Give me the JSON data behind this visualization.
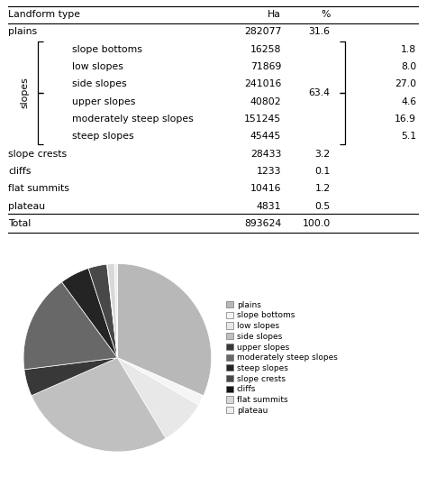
{
  "pie_labels": [
    "plains",
    "slope bottoms",
    "low slopes",
    "side slopes",
    "upper slopes",
    "moderately steep slopes",
    "steep slopes",
    "slope crests",
    "cliffs",
    "flat summits",
    "plateau"
  ],
  "pie_values": [
    31.6,
    1.8,
    8.0,
    27.0,
    4.6,
    16.9,
    5.1,
    3.2,
    0.1,
    1.2,
    0.5
  ],
  "pie_colors": [
    "#b8b8b8",
    "#f5f5f5",
    "#e8e8e8",
    "#c0c0c0",
    "#383838",
    "#686868",
    "#242424",
    "#484848",
    "#141414",
    "#d8d8d8",
    "#eeeeee"
  ],
  "table_data": [
    {
      "label": "plains",
      "indent": false,
      "ha": "282077",
      "pct_main": "31.6",
      "pct_sub": ""
    },
    {
      "label": "slope bottoms",
      "indent": true,
      "ha": "16258",
      "pct_main": "",
      "pct_sub": "1.8"
    },
    {
      "label": "low slopes",
      "indent": true,
      "ha": "71869",
      "pct_main": "",
      "pct_sub": "8.0"
    },
    {
      "label": "side slopes",
      "indent": true,
      "ha": "241016",
      "pct_main": "",
      "pct_sub": "27.0"
    },
    {
      "label": "upper slopes",
      "indent": true,
      "ha": "40802",
      "pct_main": "",
      "pct_sub": "4.6"
    },
    {
      "label": "moderately steep slopes",
      "indent": true,
      "ha": "151245",
      "pct_main": "",
      "pct_sub": "16.9"
    },
    {
      "label": "steep slopes",
      "indent": true,
      "ha": "45445",
      "pct_main": "",
      "pct_sub": "5.1"
    },
    {
      "label": "slope crests",
      "indent": false,
      "ha": "28433",
      "pct_main": "3.2",
      "pct_sub": ""
    },
    {
      "label": "cliffs",
      "indent": false,
      "ha": "1233",
      "pct_main": "0.1",
      "pct_sub": ""
    },
    {
      "label": "flat summits",
      "indent": false,
      "ha": "10416",
      "pct_main": "1.2",
      "pct_sub": ""
    },
    {
      "label": "plateau",
      "indent": false,
      "ha": "4831",
      "pct_main": "0.5",
      "pct_sub": ""
    },
    {
      "label": "Total",
      "indent": false,
      "ha": "893624",
      "pct_main": "100.0",
      "pct_sub": ""
    }
  ],
  "slopes_pct": "63.4",
  "slopes_label": "slopes",
  "background_color": "#ffffff",
  "font_size": 7.8,
  "legend_fontsize": 6.5
}
